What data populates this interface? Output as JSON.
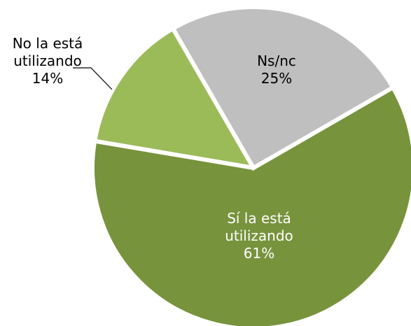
{
  "chart_data": {
    "type": "pie",
    "categories": [
      "Ns/nc",
      "Sí la está utilizando",
      "No la está utilizando"
    ],
    "values": [
      25,
      61,
      14
    ],
    "value_labels": [
      "25%",
      "61%",
      "14%"
    ],
    "colors": [
      "#bfbfbf",
      "#77933c",
      "#9bbb59"
    ]
  }
}
